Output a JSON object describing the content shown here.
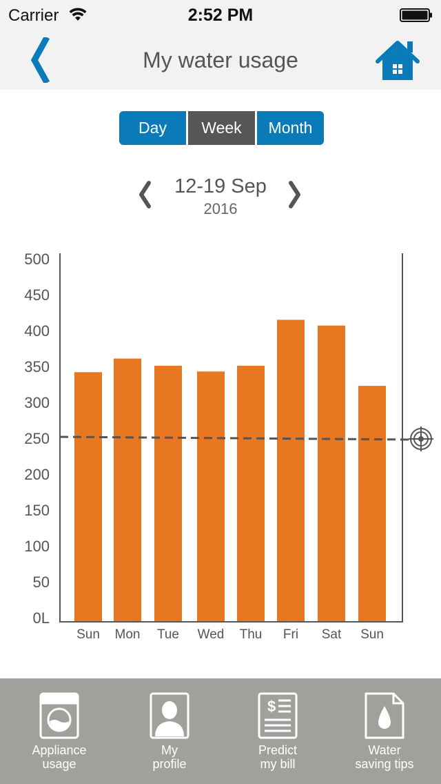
{
  "status_bar": {
    "carrier": "Carrier",
    "time": "2:52 PM"
  },
  "nav": {
    "title": "My water usage",
    "back_icon": "chevron-left-icon",
    "home_icon": "home-icon"
  },
  "segments": {
    "day": "Day",
    "week": "Week",
    "month": "Month",
    "selected": "Week"
  },
  "date_nav": {
    "range": "12-19 Sep",
    "year": "2016"
  },
  "chart_data": {
    "type": "bar",
    "categories": [
      "Sun",
      "Mon",
      "Tue",
      "Wed",
      "Thu",
      "Fri",
      "Sat",
      "Sun"
    ],
    "values": [
      342,
      361,
      351,
      343,
      351,
      415,
      407,
      323
    ],
    "ylim": [
      0,
      500
    ],
    "yticks": [
      "0L",
      "50",
      "100",
      "150",
      "200",
      "250",
      "300",
      "350",
      "400",
      "450",
      "500"
    ],
    "target_line": 250,
    "bar_color": "#e87722",
    "grid": false
  },
  "tabs": [
    {
      "label": "Appliance\nusage",
      "icon": "washing-machine-icon"
    },
    {
      "label": "My\nprofile",
      "icon": "profile-icon"
    },
    {
      "label": "Predict\nmy bill",
      "icon": "bill-icon"
    },
    {
      "label": "Water\nsaving tips",
      "icon": "water-drop-icon"
    }
  ],
  "colors": {
    "accent": "#0a7ab8",
    "segment_selected": "#565656",
    "bar": "#e87722",
    "tab_bar": "#a1a09c"
  }
}
